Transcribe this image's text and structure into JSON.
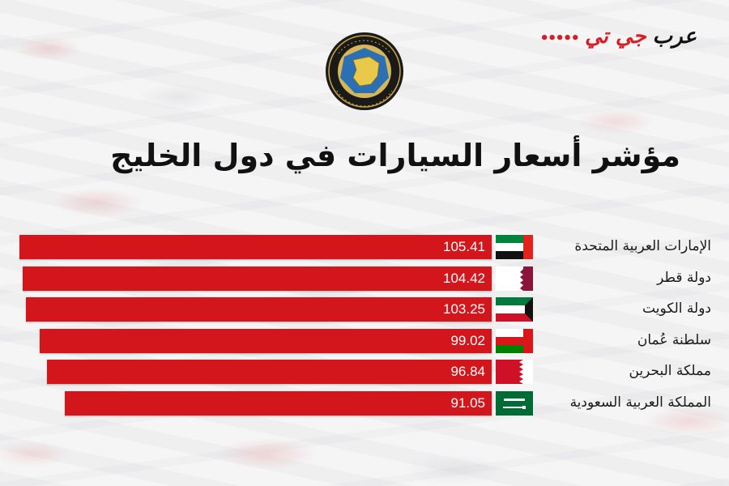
{
  "brand": {
    "part1": "عرب",
    "part2": "جي تي",
    "accent_color": "#d81e24"
  },
  "emblem": {
    "icon": "gcc-emblem-icon"
  },
  "chart_data": {
    "type": "bar",
    "orientation": "horizontal",
    "title": "مؤشر أسعار السيارات في دول الخليج",
    "categories": [
      "الإمارات العربية المتحدة",
      "دولة قطر",
      "دولة الكويت",
      "سلطنة عُمان",
      "مملكة البحرين",
      "المملكة العربية السعودية"
    ],
    "values": [
      105.41,
      104.42,
      103.25,
      99.02,
      96.84,
      91.05
    ],
    "value_labels": [
      "105.41",
      "104.42",
      "103.25",
      "99.02",
      "96.84",
      "91.05"
    ],
    "flags": [
      "uae-flag-icon",
      "qatar-flag-icon",
      "kuwait-flag-icon",
      "oman-flag-icon",
      "bahrain-flag-icon",
      "saudi-flag-icon"
    ],
    "bar_color": "#d2161c",
    "grid": false,
    "legend": "none"
  }
}
